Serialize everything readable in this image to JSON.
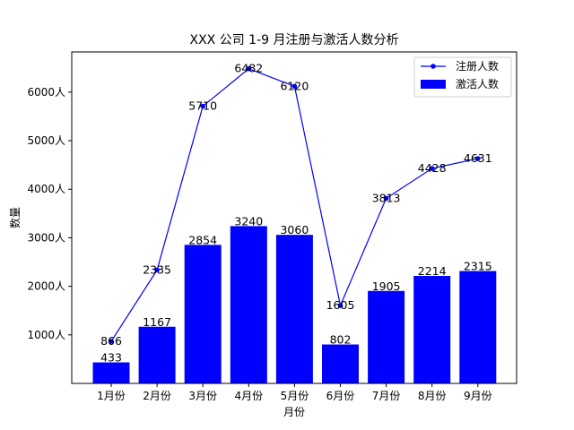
{
  "chart_data": {
    "type": "bar",
    "title": "XXX 公司 1-9 月注册与激活人数分析",
    "xlabel": "月份",
    "ylabel": "数量",
    "categories": [
      "1月份",
      "2月份",
      "3月份",
      "4月份",
      "5月份",
      "6月份",
      "7月份",
      "8月份",
      "9月份"
    ],
    "ylim": [
      0,
      6800
    ],
    "yticks": [
      1000,
      2000,
      3000,
      4000,
      5000,
      6000
    ],
    "ytick_labels": [
      "1000人",
      "2000人",
      "3000人",
      "4000人",
      "5000人",
      "6000人"
    ],
    "grid": false,
    "legend_position": "top-right",
    "series": [
      {
        "name": "注册人数",
        "type": "line",
        "marker": "circle",
        "color": "#0000ff",
        "values": [
          866,
          2335,
          5710,
          6482,
          6120,
          1605,
          3813,
          4428,
          4631
        ]
      },
      {
        "name": "激活人数",
        "type": "bar",
        "color": "#0000ff",
        "values": [
          433,
          1167,
          2854,
          3240,
          3060,
          802,
          1905,
          2214,
          2315
        ]
      }
    ]
  }
}
